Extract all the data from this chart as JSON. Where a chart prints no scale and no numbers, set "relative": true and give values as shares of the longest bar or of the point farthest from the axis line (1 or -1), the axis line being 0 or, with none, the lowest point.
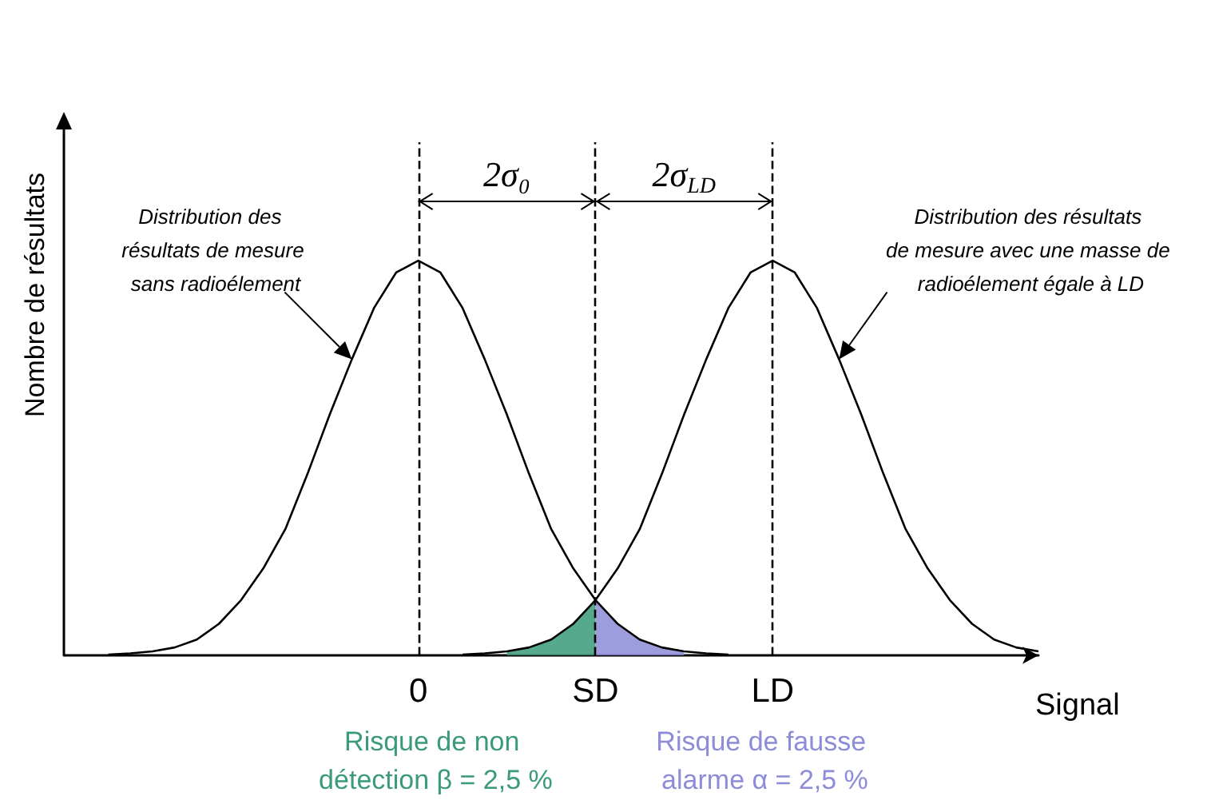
{
  "chart_data": {
    "type": "line",
    "relative": true,
    "xlabel": "Signal",
    "ylabel": "Nombre de résultats",
    "categories": [
      null,
      null,
      null,
      null,
      null,
      null,
      null,
      null,
      null,
      null,
      null,
      null,
      null,
      null,
      null,
      null,
      "0",
      null,
      null,
      null,
      null,
      null,
      null,
      null,
      "SD",
      null,
      null,
      null,
      null,
      null,
      null,
      null,
      "LD",
      null,
      null,
      null,
      null,
      null,
      null,
      null,
      null,
      null,
      null,
      null,
      null
    ],
    "tick_labels": "x",
    "grid": false,
    "legend": false,
    "marker": "none",
    "series": [
      {
        "color": "#000000",
        "values": [
          null,
          null,
          0.002,
          0.005,
          0.01,
          0.02,
          0.04,
          0.08,
          0.14,
          0.22,
          0.32,
          0.46,
          0.61,
          0.75,
          0.88,
          0.97,
          1,
          0.97,
          0.88,
          0.75,
          0.61,
          0.46,
          0.32,
          0.22,
          0.14,
          0.08,
          0.04,
          0.02,
          0.01,
          0.005,
          0.002,
          null,
          null,
          null,
          null,
          null,
          null,
          null,
          null,
          null,
          null,
          null,
          null,
          null,
          null
        ]
      },
      {
        "color": "#000000",
        "values": [
          null,
          null,
          null,
          null,
          null,
          null,
          null,
          null,
          null,
          null,
          null,
          null,
          null,
          null,
          null,
          null,
          null,
          null,
          0.002,
          0.005,
          0.01,
          0.02,
          0.04,
          0.08,
          0.14,
          0.22,
          0.32,
          0.46,
          0.61,
          0.75,
          0.88,
          0.97,
          1,
          0.97,
          0.88,
          0.75,
          0.61,
          0.46,
          0.32,
          0.22,
          0.14,
          0.08,
          0.04,
          0.02,
          0.01
        ]
      },
      {
        "type": "area",
        "name": "Risque de non détection β = 2,5 %",
        "color": "#3a9a7a",
        "values": [
          null,
          null,
          null,
          null,
          null,
          null,
          null,
          null,
          null,
          null,
          null,
          null,
          null,
          null,
          null,
          null,
          null,
          null,
          null,
          null,
          0.01,
          0.02,
          0.04,
          0.08,
          0.14,
          null,
          null,
          null,
          null,
          null,
          null,
          null,
          null,
          null,
          null,
          null,
          null,
          null,
          null,
          null,
          null,
          null,
          null,
          null,
          null
        ]
      },
      {
        "type": "area",
        "name": "Risque de fausse alarme α = 2,5 %",
        "color": "#8c8cd8",
        "values": [
          null,
          null,
          null,
          null,
          null,
          null,
          null,
          null,
          null,
          null,
          null,
          null,
          null,
          null,
          null,
          null,
          null,
          null,
          null,
          null,
          null,
          null,
          null,
          null,
          0.14,
          0.08,
          0.04,
          0.02,
          0.01,
          null,
          null,
          null,
          null,
          null,
          null,
          null,
          null,
          null,
          null,
          null,
          null,
          null,
          null,
          null,
          null
        ]
      }
    ],
    "ref_lines": [
      {
        "axis": "x",
        "value": "0",
        "line_style": "dashed",
        "color": "#000000"
      },
      {
        "axis": "x",
        "value": "SD",
        "line_style": "dashed",
        "color": "#000000"
      },
      {
        "axis": "x",
        "value": "LD",
        "line_style": "dashed",
        "color": "#000000"
      }
    ],
    "annotations": [
      "Distribution des résultats de mesure sans radioélement",
      "Distribution des résultats de mesure avec une masse de radioélement égale à LD",
      "2σ₀",
      "2σ$_{LD}$"
    ]
  }
}
